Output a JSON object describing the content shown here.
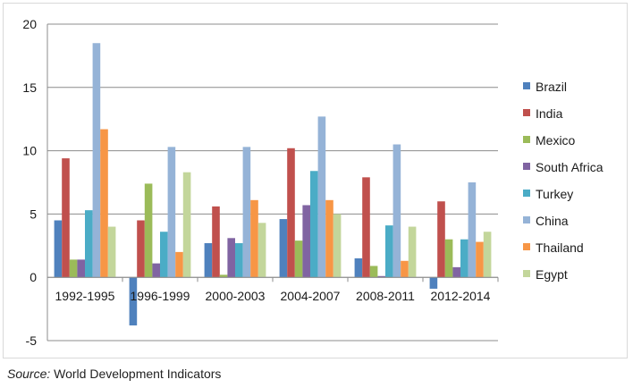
{
  "chart_data": {
    "type": "bar",
    "categories": [
      "1992-1995",
      "1996-1999",
      "2000-2003",
      "2004-2007",
      "2008-2011",
      "2012-2014"
    ],
    "series": [
      {
        "name": "Brazil",
        "color": "#4f81bd",
        "values": [
          4.5,
          -3.8,
          2.7,
          4.6,
          1.5,
          -0.9
        ]
      },
      {
        "name": "India",
        "color": "#c0504d",
        "values": [
          9.4,
          4.5,
          5.6,
          10.2,
          7.9,
          6.0
        ]
      },
      {
        "name": "Mexico",
        "color": "#9bbb59",
        "values": [
          1.4,
          7.4,
          0.2,
          2.9,
          0.9,
          3.0
        ]
      },
      {
        "name": "South Africa",
        "color": "#8064a2",
        "values": [
          1.4,
          1.1,
          3.1,
          5.7,
          0.1,
          0.8
        ]
      },
      {
        "name": "Turkey",
        "color": "#4bacc6",
        "values": [
          5.3,
          3.6,
          2.7,
          8.4,
          4.1,
          3.0
        ]
      },
      {
        "name": "China",
        "color": "#95b3d7",
        "values": [
          18.5,
          10.3,
          10.3,
          12.7,
          10.5,
          7.5
        ]
      },
      {
        "name": "Thailand",
        "color": "#f79646",
        "values": [
          11.7,
          2.0,
          6.1,
          6.1,
          1.3,
          2.8
        ]
      },
      {
        "name": "Egypt",
        "color": "#c3d69b",
        "values": [
          4.0,
          8.3,
          4.3,
          5.0,
          4.0,
          3.6
        ]
      }
    ],
    "ylim": [
      -5,
      20
    ],
    "yticks": [
      -5,
      0,
      5,
      10,
      15,
      20
    ],
    "grid": true,
    "legend_position": "right"
  },
  "source": {
    "label": "Source:",
    "text": " World Development Indicators"
  }
}
